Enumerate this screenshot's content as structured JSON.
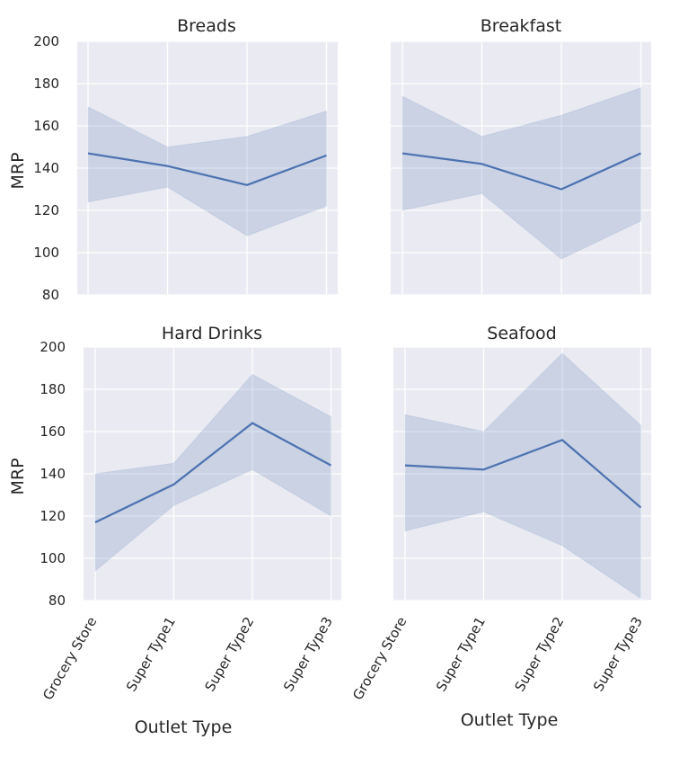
{
  "chart_data": [
    {
      "type": "line",
      "title": "Breads",
      "categories": [
        "Grocery Store",
        "Super Type1",
        "Super Type2",
        "Super Type3"
      ],
      "values": [
        147,
        141,
        132,
        146
      ],
      "ci_upper": [
        169,
        150,
        155,
        167
      ],
      "ci_lower": [
        124,
        131,
        108,
        122
      ],
      "ylabel": "MRP",
      "xlabel": "",
      "ylim": [
        80,
        200
      ],
      "yticks": [
        "80",
        "100",
        "120",
        "140",
        "160",
        "180",
        "200"
      ],
      "grid": true
    },
    {
      "type": "line",
      "title": "Breakfast",
      "categories": [
        "Grocery Store",
        "Super Type1",
        "Super Type2",
        "Super Type3"
      ],
      "values": [
        147,
        142,
        130,
        147
      ],
      "ci_upper": [
        174,
        155,
        165,
        178
      ],
      "ci_lower": [
        120,
        128,
        97,
        115
      ],
      "ylabel": "",
      "xlabel": "",
      "ylim": [
        80,
        200
      ],
      "grid": true
    },
    {
      "type": "line",
      "title": "Hard Drinks",
      "categories": [
        "Grocery Store",
        "Super Type1",
        "Super Type2",
        "Super Type3"
      ],
      "values": [
        117,
        135,
        164,
        144
      ],
      "ci_upper": [
        140,
        145,
        187,
        167
      ],
      "ci_lower": [
        94,
        125,
        142,
        120
      ],
      "ylabel": "MRP",
      "xlabel": "Outlet Type",
      "ylim": [
        80,
        200
      ],
      "yticks": [
        "80",
        "100",
        "120",
        "140",
        "160",
        "180",
        "200"
      ],
      "xticks": [
        "Grocery Store",
        "Super Type1",
        "Super Type2",
        "Super Type3"
      ],
      "grid": true
    },
    {
      "type": "line",
      "title": "Seafood",
      "categories": [
        "Grocery Store",
        "Super Type1",
        "Super Type2",
        "Super Type3"
      ],
      "values": [
        144,
        142,
        156,
        124
      ],
      "ci_upper": [
        168,
        160,
        197,
        163
      ],
      "ci_lower": [
        113,
        122,
        106,
        81
      ],
      "ylabel": "",
      "xlabel": "Outlet Type",
      "ylim": [
        80,
        200
      ],
      "xticks": [
        "Grocery Store",
        "Super Type1",
        "Super Type2",
        "Super Type3"
      ],
      "grid": true
    }
  ],
  "colors": {
    "plot_background": "#eaeaf2",
    "grid": "#ffffff",
    "line": "#4c72b0",
    "band": "#4c72b0",
    "text": "#262626"
  }
}
